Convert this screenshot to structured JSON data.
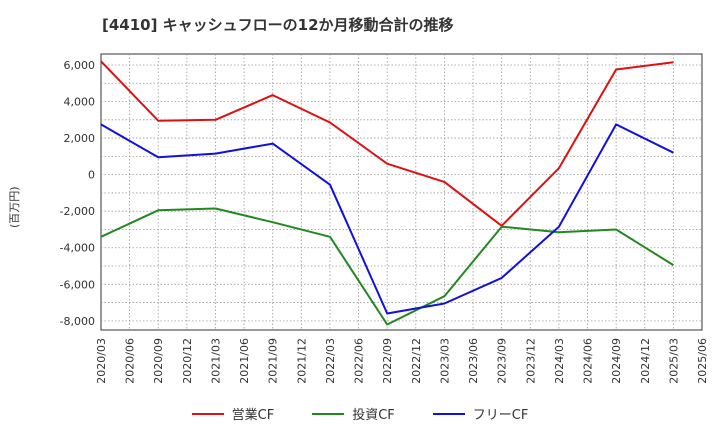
{
  "chart_data": {
    "type": "line",
    "title": "[4410]  キャッシュフローの12か月移動合計の推移",
    "ylabel": "(百万円)",
    "xlabel": "",
    "ylim": [
      -8500,
      6600
    ],
    "yticks": [
      6000,
      4000,
      2000,
      0,
      -2000,
      -4000,
      -6000,
      -8000
    ],
    "ytick_labels": [
      "6,000",
      "4,000",
      "2,000",
      "0",
      "-2,000",
      "-4,000",
      "-6,000",
      "-8,000"
    ],
    "categories": [
      "2020/03",
      "2020/06",
      "2020/09",
      "2020/12",
      "2021/03",
      "2021/06",
      "2021/09",
      "2021/12",
      "2022/03",
      "2022/06",
      "2022/09",
      "2022/12",
      "2023/03",
      "2023/06",
      "2023/09",
      "2023/12",
      "2024/03",
      "2024/06",
      "2024/09",
      "2024/12",
      "2025/03",
      "2025/06"
    ],
    "series": [
      {
        "name": "営業CF",
        "color": "#dd1111",
        "values": [
          6200,
          null,
          2950,
          null,
          3000,
          null,
          4350,
          null,
          2850,
          null,
          600,
          null,
          -400,
          null,
          -2800,
          null,
          350,
          null,
          5750,
          null,
          6150,
          null
        ]
      },
      {
        "name": "投資CF",
        "color": "#228822",
        "values": [
          -3400,
          null,
          -1950,
          null,
          -1850,
          null,
          -2600,
          null,
          -3400,
          null,
          -8200,
          null,
          -6650,
          null,
          -2850,
          null,
          -3150,
          null,
          -3000,
          null,
          -4950,
          null
        ]
      },
      {
        "name": "フリーCF",
        "color": "#1111dd",
        "values": [
          2750,
          null,
          950,
          null,
          1150,
          null,
          1700,
          null,
          -550,
          null,
          -7600,
          null,
          -7050,
          null,
          -5650,
          null,
          -2850,
          null,
          2750,
          null,
          1200,
          null
        ]
      }
    ]
  }
}
